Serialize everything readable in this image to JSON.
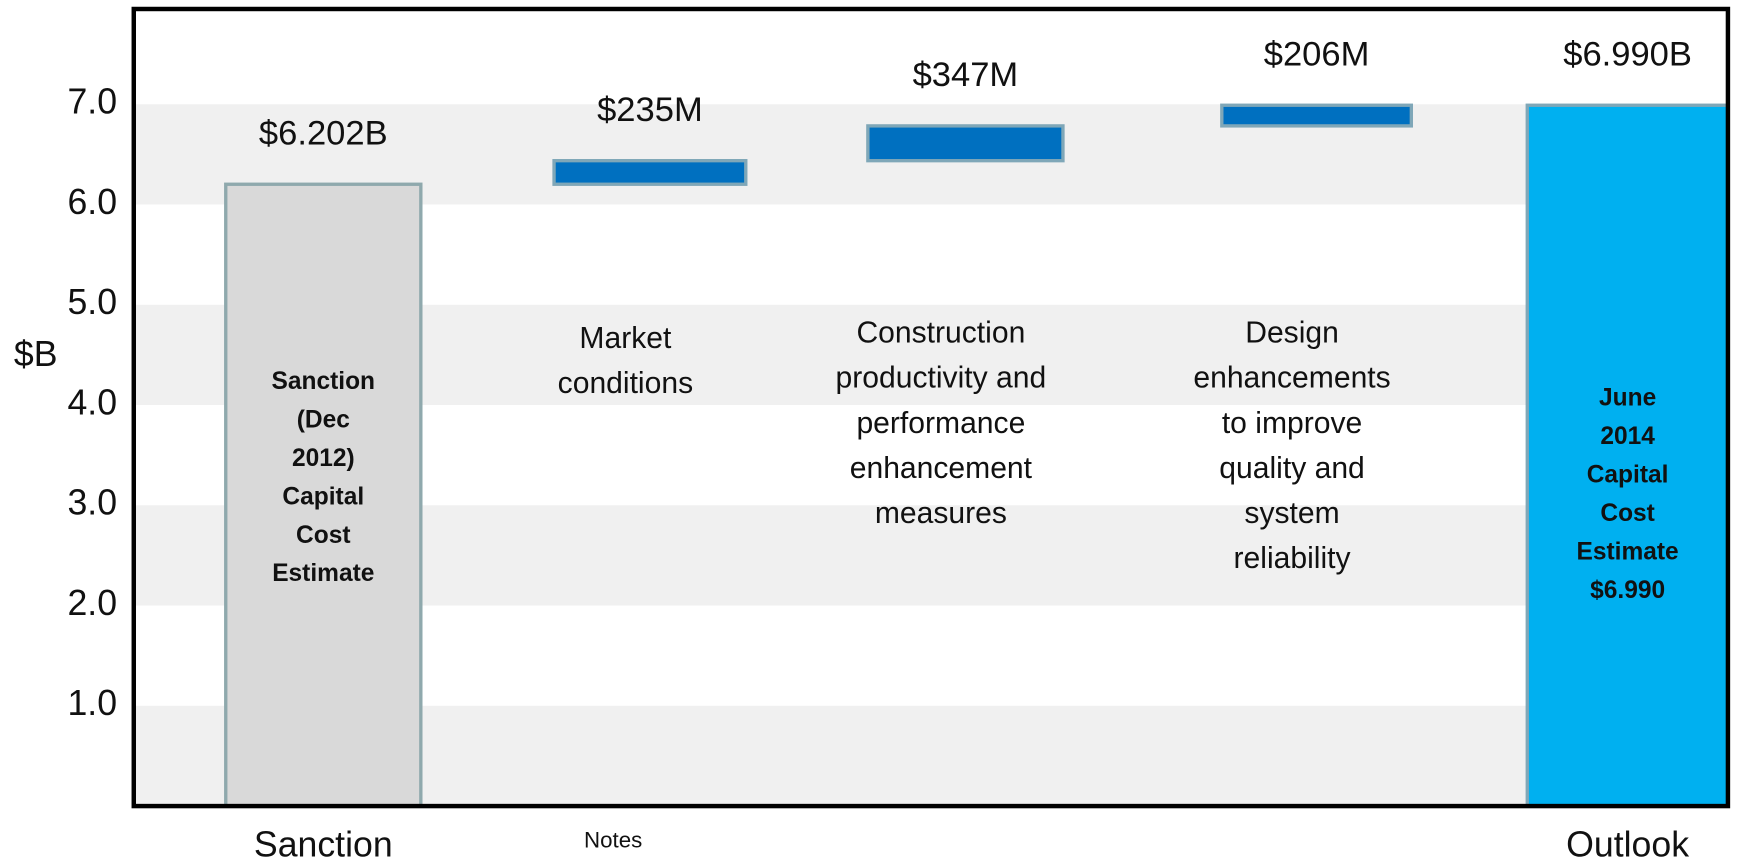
{
  "chart_data": {
    "type": "waterfall",
    "categories": [
      "Sanction",
      null,
      null,
      null,
      "Outlook"
    ],
    "values": [
      6.202,
      0.235,
      0.347,
      0.206,
      6.99
    ],
    "value_labels": [
      "$6.202B",
      "$235M",
      "$347M",
      "$206M",
      "$6.990B"
    ],
    "bar_texts": [
      [
        "Sanction",
        "(Dec",
        "2012)",
        "Capital",
        "Cost",
        "Estimate"
      ],
      null,
      null,
      null,
      [
        "June",
        "2014",
        "Capital",
        "Cost",
        "Estimate",
        "$6.990"
      ]
    ],
    "descriptions": [
      null,
      [
        "Market",
        "conditions"
      ],
      [
        "Construction",
        "productivity and",
        "performance",
        "enhancement",
        "measures"
      ],
      [
        "Design",
        "enhancements",
        "to improve",
        "quality and",
        "system",
        "reliability"
      ],
      null
    ],
    "colors": [
      "#d9d9d9",
      "#0070c0",
      "#0070c0",
      "#0070c0",
      "#00b0f0"
    ],
    "ylabel": "$B",
    "ylim": [
      0,
      7.95
    ],
    "yticks": [
      {
        "value": 1,
        "label": "1.0"
      },
      {
        "value": 2,
        "label": "2.0"
      },
      {
        "value": 3,
        "label": "3.0"
      },
      {
        "value": 4,
        "label": "4.0"
      },
      {
        "value": 5,
        "label": "5.0"
      },
      {
        "value": 6,
        "label": "6.0"
      },
      {
        "value": 7,
        "label": "7.0"
      }
    ],
    "grid": "bands",
    "note": "Notes"
  }
}
